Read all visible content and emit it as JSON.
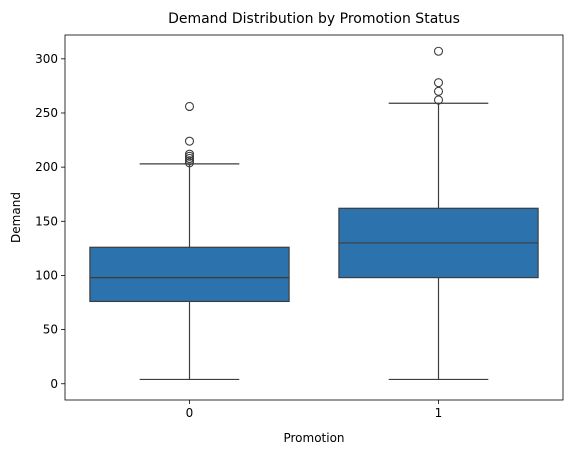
{
  "chart_data": {
    "type": "box",
    "title": "Demand Distribution by Promotion Status",
    "xlabel": "Promotion",
    "ylabel": "Demand",
    "ylim": [
      -15,
      322
    ],
    "yticks": [
      0,
      50,
      100,
      150,
      200,
      250,
      300
    ],
    "categories": [
      "0",
      "1"
    ],
    "grid": false,
    "legend": "none",
    "box_color": "#2c72ad",
    "line_color": "#3d3d3d",
    "boxes": [
      {
        "category": "0",
        "whisker_low": 4,
        "q1": 76,
        "median": 98,
        "q3": 126,
        "whisker_high": 203,
        "outliers": [
          204,
          206,
          208,
          210,
          212,
          224,
          256
        ]
      },
      {
        "category": "1",
        "whisker_low": 4,
        "q1": 98,
        "median": 130,
        "q3": 162,
        "whisker_high": 259,
        "outliers": [
          262,
          270,
          278,
          307
        ]
      }
    ]
  }
}
